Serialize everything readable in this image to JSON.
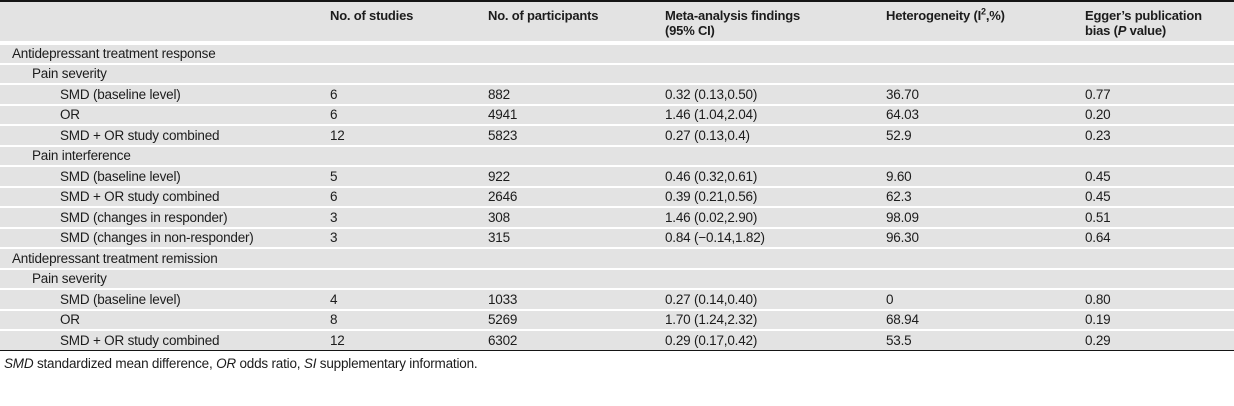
{
  "page": {
    "background": "#ffffff",
    "row_fill": "#e3e3e3",
    "separator_color": "#ffffff",
    "rule_color": "#151515",
    "text_color": "#1c1c1c"
  },
  "table": {
    "columns": [
      {
        "name": "row-label-column",
        "segments": []
      },
      {
        "name": "no-of-studies-column",
        "segments": [
          {
            "t": "No. of studies"
          }
        ]
      },
      {
        "name": "no-of-participants-column",
        "segments": [
          {
            "t": "No. of participants"
          }
        ]
      },
      {
        "name": "meta-analysis-findings-column",
        "segments": [
          {
            "t": "Meta-analysis findings"
          },
          {
            "br": true
          },
          {
            "t": "(95% CI)"
          }
        ]
      },
      {
        "name": "heterogeneity-column",
        "segments": [
          {
            "t": "Heterogeneity (I"
          },
          {
            "t": "2",
            "sup": true
          },
          {
            "t": ",%)"
          }
        ]
      },
      {
        "name": "eggers-publication-bias-column",
        "segments": [
          {
            "t": "Egger’s publication"
          },
          {
            "br": true
          },
          {
            "t": "bias ("
          },
          {
            "t": "P",
            "i": true
          },
          {
            "t": " value)"
          }
        ]
      }
    ],
    "rows": [
      {
        "indent": 0,
        "label": "Antidepressant treatment response",
        "values": [
          "",
          "",
          "",
          "",
          ""
        ]
      },
      {
        "indent": 1,
        "label": "Pain severity",
        "values": [
          "",
          "",
          "",
          "",
          ""
        ]
      },
      {
        "indent": 2,
        "label": "SMD (baseline level)",
        "values": [
          "6",
          "882",
          "0.32 (0.13,0.50)",
          "36.70",
          "0.77"
        ]
      },
      {
        "indent": 2,
        "label": "OR",
        "values": [
          "6",
          "4941",
          "1.46 (1.04,2.04)",
          "64.03",
          "0.20"
        ]
      },
      {
        "indent": 2,
        "label": "SMD + OR study combined",
        "values": [
          "12",
          "5823",
          "0.27 (0.13,0.4)",
          "52.9",
          "0.23"
        ]
      },
      {
        "indent": 1,
        "label": "Pain interference",
        "values": [
          "",
          "",
          "",
          "",
          ""
        ]
      },
      {
        "indent": 2,
        "label": "SMD (baseline level)",
        "values": [
          "5",
          "922",
          "0.46 (0.32,0.61)",
          "9.60",
          "0.45"
        ]
      },
      {
        "indent": 2,
        "label": "SMD + OR study combined",
        "values": [
          "6",
          "2646",
          "0.39 (0.21,0.56)",
          "62.3",
          "0.45"
        ]
      },
      {
        "indent": 2,
        "label": "SMD (changes in responder)",
        "values": [
          "3",
          "308",
          "1.46 (0.02,2.90)",
          "98.09",
          "0.51"
        ]
      },
      {
        "indent": 2,
        "label": "SMD (changes in non-responder)",
        "values": [
          "3",
          "315",
          "0.84 (−0.14,1.82)",
          "96.30",
          "0.64"
        ]
      },
      {
        "indent": 0,
        "label": "Antidepressant treatment remission",
        "values": [
          "",
          "",
          "",
          "",
          ""
        ]
      },
      {
        "indent": 1,
        "label": "Pain severity",
        "values": [
          "",
          "",
          "",
          "",
          ""
        ]
      },
      {
        "indent": 2,
        "label": "SMD (baseline level)",
        "values": [
          "4",
          "1033",
          "0.27 (0.14,0.40)",
          "0",
          "0.80"
        ]
      },
      {
        "indent": 2,
        "label": "OR",
        "values": [
          "8",
          "5269",
          "1.70 (1.24,2.32)",
          "68.94",
          "0.19"
        ]
      },
      {
        "indent": 2,
        "label": "SMD + OR study combined",
        "values": [
          "12",
          "6302",
          "0.29 (0.17,0.42)",
          "53.5",
          "0.29"
        ]
      }
    ],
    "cell_names": [
      "no-of-studies-cell",
      "no-of-participants-cell",
      "meta-analysis-findings-cell",
      "heterogeneity-cell",
      "eggers-bias-cell"
    ],
    "footnote_segments": [
      {
        "t": "SMD",
        "i": true
      },
      {
        "t": " standardized mean difference, "
      },
      {
        "t": "OR",
        "i": true
      },
      {
        "t": " odds ratio, "
      },
      {
        "t": "SI",
        "i": true
      },
      {
        "t": " supplementary information."
      }
    ]
  }
}
